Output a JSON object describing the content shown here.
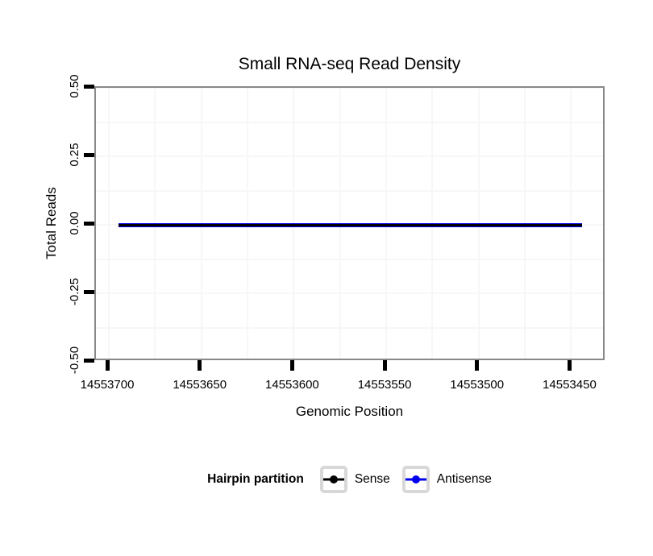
{
  "title": "Small RNA-seq Read Density",
  "chart_data": {
    "type": "line",
    "title": "Small RNA-seq Read Density",
    "xlabel": "Genomic Position",
    "ylabel": "Total Reads",
    "grid": "on (very faint major and minor gridlines)",
    "x_axis": {
      "reversed": true,
      "domain": [
        14553707,
        14553431
      ],
      "ticks": [
        14553700,
        14553650,
        14553600,
        14553550,
        14553500,
        14553450
      ],
      "tick_labels": [
        "14553700",
        "14553650",
        "14553600",
        "14553550",
        "14553500",
        "14553450"
      ]
    },
    "y_axis": {
      "domain": [
        -0.5,
        0.5
      ],
      "ticks": [
        0.5,
        0.25,
        0,
        -0.25,
        -0.5
      ],
      "tick_labels": [
        "0.50",
        "0.25",
        "0.00",
        "-0.25",
        "-0.50"
      ]
    },
    "series": [
      {
        "name": "Sense",
        "color": "#000000",
        "y_constant": 0,
        "x_range": [
          14553695,
          14553444
        ]
      },
      {
        "name": "Antisense",
        "color": "#0000EE",
        "y_constant": 0,
        "x_range": [
          14553695,
          14553444
        ]
      }
    ],
    "legend_position": "bottom"
  },
  "legend": {
    "title": "Hairpin partition",
    "entries": [
      {
        "label": "Sense",
        "color": "#000000"
      },
      {
        "label": "Antisense",
        "color": "#0000EE"
      }
    ]
  },
  "colors": {
    "panel_border": "#898989",
    "gridline": "#f7f7f7",
    "tick_mark": "#000000",
    "legend_key_border": "#d8d8d8"
  }
}
